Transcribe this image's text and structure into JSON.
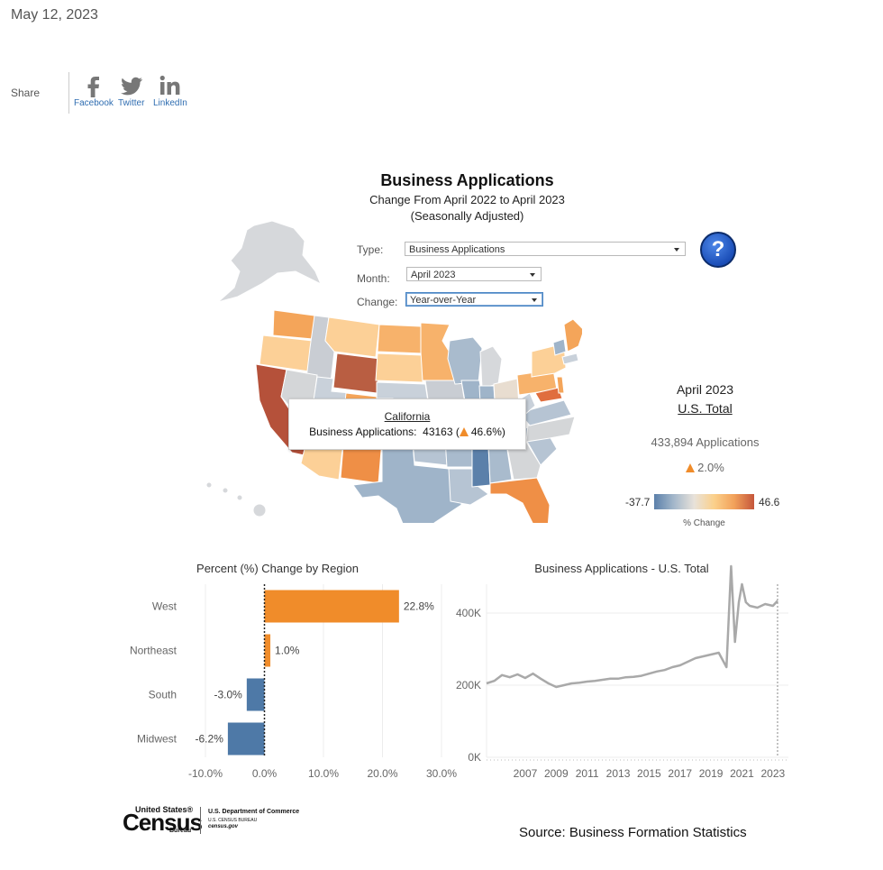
{
  "date": "May 12, 2023",
  "share": {
    "label": "Share",
    "items": [
      {
        "label": "Facebook",
        "icon": "facebook-icon"
      },
      {
        "label": "Twitter",
        "icon": "twitter-icon"
      },
      {
        "label": "LinkedIn",
        "icon": "linkedin-icon"
      }
    ]
  },
  "dashboard": {
    "title": "Business Applications",
    "subtitle1": "Change From April 2022 to April 2023",
    "subtitle2": "(Seasonally Adjusted)",
    "help_glyph": "?"
  },
  "filters": {
    "type_label": "Type:",
    "type_value": "Business Applications",
    "month_label": "Month:",
    "month_value": "April 2023",
    "change_label": "Change:",
    "change_value": "Year-over-Year"
  },
  "tooltip": {
    "state": "California",
    "label": "Business Applications:",
    "value": "43163",
    "change": "46.6%"
  },
  "totals": {
    "month": "April 2023",
    "title": "U.S. Total",
    "applications": "433,894 Applications",
    "change": "2.0%"
  },
  "legend": {
    "min": "-37.7",
    "max": "46.6",
    "label": "% Change"
  },
  "colors": {
    "orange": "#f08c2a",
    "blue": "#4e79a7",
    "line": "#a9a9a9",
    "scale_low": "#5b80aa",
    "scale_high": "#c5563b"
  },
  "chart_data": [
    {
      "type": "bar",
      "title": "Percent (%) Change by Region",
      "categories": [
        "West",
        "Northeast",
        "South",
        "Midwest"
      ],
      "values": [
        22.8,
        1.0,
        -3.0,
        -6.2
      ],
      "value_labels": [
        "22.8%",
        "1.0%",
        "-3.0%",
        "-6.2%"
      ],
      "xlim": [
        -10,
        30
      ],
      "x_ticks": [
        "-10.0%",
        "0.0%",
        "10.0%",
        "20.0%",
        "30.0%"
      ],
      "orientation": "horizontal"
    },
    {
      "type": "line",
      "title": "Business Applications - U.S. Total",
      "ylim": [
        0,
        480000
      ],
      "y_ticks": [
        "0K",
        "200K",
        "400K"
      ],
      "x_ticks": [
        "2007",
        "2009",
        "2011",
        "2013",
        "2015",
        "2017",
        "2019",
        "2021",
        "2023"
      ],
      "x": [
        2004.5,
        2005.0,
        2005.5,
        2006.0,
        2006.5,
        2007.0,
        2007.5,
        2008.0,
        2008.5,
        2009.0,
        2009.5,
        2010.0,
        2010.5,
        2011.0,
        2011.5,
        2012.0,
        2012.5,
        2013.0,
        2013.5,
        2014.0,
        2014.5,
        2015.0,
        2015.5,
        2016.0,
        2016.5,
        2017.0,
        2017.5,
        2018.0,
        2018.5,
        2019.0,
        2019.5,
        2020.0,
        2020.3,
        2020.55,
        2020.8,
        2021.0,
        2021.25,
        2021.5,
        2022.0,
        2022.5,
        2023.0,
        2023.3
      ],
      "y": [
        205000,
        212000,
        228000,
        222000,
        230000,
        220000,
        232000,
        218000,
        205000,
        195000,
        200000,
        205000,
        207000,
        210000,
        212000,
        215000,
        218000,
        218000,
        222000,
        223000,
        226000,
        232000,
        238000,
        242000,
        250000,
        255000,
        265000,
        275000,
        280000,
        285000,
        290000,
        250000,
        530000,
        320000,
        430000,
        480000,
        430000,
        420000,
        415000,
        425000,
        420000,
        434000
      ]
    }
  ],
  "footer": {
    "logo_united": "United States®",
    "logo_census": "Census",
    "logo_bureau": "Bureau",
    "dept1": "U.S. Department of Commerce",
    "dept2": "U.S. CENSUS BUREAU",
    "dept3": "census.gov",
    "source": "Source: Business Formation Statistics"
  }
}
